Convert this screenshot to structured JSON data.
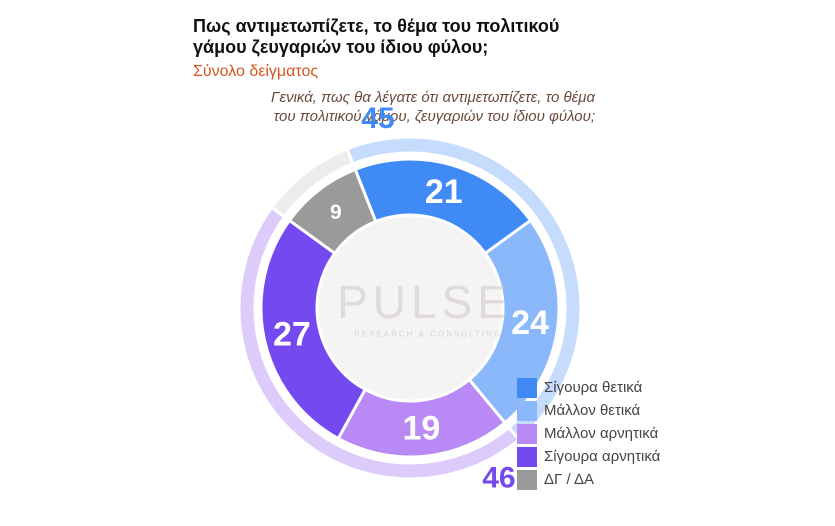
{
  "header": {
    "title": "Πως αντιμετωπίζετε, το θέμα του πολιτικού\nγάμου ζευγαριών του ίδιου φύλου;",
    "subtitle": "Σύνολο δείγματος",
    "question": "Γενικά, πως θα λέγατε ότι αντιμετωπίζετε, το θέμα\nτου πολιτικού γάμου, ζευγαριών του ίδιου φύλου;"
  },
  "watermark": {
    "logo": "PULSE",
    "tagline": "RESEARCH & CONSULTING"
  },
  "colors": {
    "certainly_positive": "#3f8af5",
    "rather_positive": "#8bb8fb",
    "rather_negative": "#b98af5",
    "certainly_negative": "#7549f0",
    "dk_na": "#9a9a9a",
    "outer_positive": "#c5dcfd",
    "outer_negative": "#dccbfb",
    "outer_rest": "#ededed"
  },
  "chart_data": {
    "type": "pie",
    "title": "Πως αντιμετωπίζετε, το θέμα του πολιτικού γάμου ζευγαριών του ίδιου φύλου;",
    "subtitle": "Σύνολο δείγματος",
    "categories": [
      "Σίγουρα θετικά",
      "Μάλλον θετικά",
      "Μάλλον αρνητικά",
      "Σίγουρα αρνητικά",
      "ΔΓ / ΔΑ"
    ],
    "values": [
      21,
      24,
      19,
      27,
      9
    ],
    "groups": [
      {
        "name": "positive",
        "value": 45
      },
      {
        "name": "negative",
        "value": 46
      },
      {
        "name": "dk_na",
        "value": 9
      }
    ],
    "legend_position": "bottom-right"
  }
}
